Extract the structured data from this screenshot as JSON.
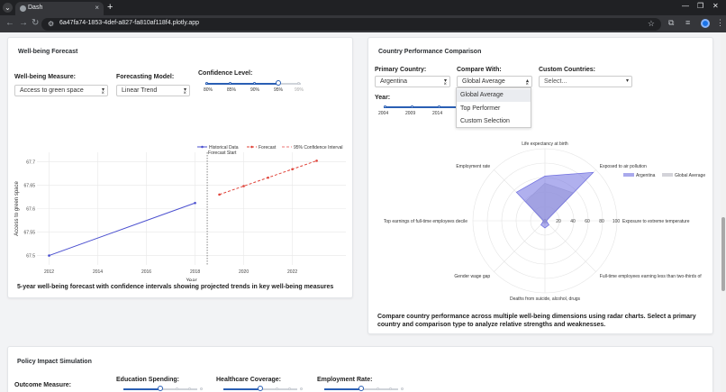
{
  "browser": {
    "tab_title": "Dash",
    "url": "6a47fa74-1853-4def-a827-fa810af118f4.plotly.app"
  },
  "forecast": {
    "title": "Well-being Forecast",
    "measure_label": "Well-being Measure:",
    "measure_value": "Access to green space",
    "model_label": "Forecasting Model:",
    "model_value": "Linear Trend",
    "confidence_label": "Confidence Level:",
    "confidence_marks": [
      "80%",
      "85%",
      "90%",
      "95%",
      "99%"
    ],
    "confidence_selected": "95%",
    "caption": "5-year well-being forecast with confidence intervals showing projected trends in key well-being measures",
    "chart_data": {
      "type": "line",
      "xlabel": "Year",
      "ylabel": "Access to green space",
      "xlim": [
        2011.5,
        2024.2
      ],
      "ylim": [
        67.48,
        67.72
      ],
      "xticks": [
        "2012",
        "2014",
        "2016",
        "2018",
        "2020",
        "2022"
      ],
      "yticks": [
        "67.5",
        "67.55",
        "67.6",
        "67.65",
        "67.7"
      ],
      "legend": [
        "Historical Data",
        "Forecast",
        "95% Confidence Interval"
      ],
      "legend_position": "top-right",
      "annotation": "Forecast Start",
      "forecast_start_x": 2018.5,
      "series": [
        {
          "name": "Historical Data",
          "color": "#4a4fcf",
          "style": "solid",
          "x": [
            2012,
            2018
          ],
          "y": [
            67.5,
            67.612
          ]
        },
        {
          "name": "Forecast",
          "color": "#e0443a",
          "style": "dash",
          "x": [
            2019,
            2020,
            2021,
            2022,
            2023
          ],
          "y": [
            67.63,
            67.648,
            67.666,
            67.684,
            67.702
          ]
        }
      ]
    }
  },
  "comparison": {
    "title": "Country Performance Comparison",
    "primary_label": "Primary Country:",
    "primary_value": "Argentina",
    "compare_label": "Compare With:",
    "compare_value": "Global Average",
    "custom_label": "Custom Countries:",
    "custom_placeholder": "Select...",
    "compare_options": [
      "Global Average",
      "Top Performer",
      "Custom Selection"
    ],
    "year_label": "Year:",
    "year_marks": [
      "2004",
      "2009",
      "2014"
    ],
    "caption": "Compare country performance across multiple well-being dimensions using radar charts. Select a primary country and comparison type to analyze relative strengths and weaknesses.",
    "chart_data": {
      "type": "radar",
      "axes": [
        "Life expectancy at birth",
        "Exposed to air pollution",
        "Exposure to extreme temperature",
        "Full-time employees earning less than two-thirds of",
        "Deaths from suicide, alcohol, drugs",
        "Gender wage gap",
        "Top earnings of full-time employees decile",
        "Employment rate"
      ],
      "radial_ticks": [
        "0",
        "20",
        "40",
        "60",
        "80",
        "100"
      ],
      "legend": [
        "Argentina",
        "Global Average"
      ],
      "legend_position": "top-right",
      "series": [
        {
          "name": "Argentina",
          "color": "#6f6fe0",
          "values": [
            62,
            95,
            2,
            8,
            10,
            8,
            2,
            56
          ]
        },
        {
          "name": "Global Average",
          "color": "#c8c8d0",
          "values": [
            52,
            55,
            2,
            4,
            4,
            4,
            3,
            38
          ]
        }
      ]
    }
  },
  "policy": {
    "title": "Policy Impact Simulation",
    "outcome_label": "Outcome Measure:",
    "edu_label": "Education Spending:",
    "health_label": "Healthcare Coverage:",
    "employment_label": "Employment Rate:"
  }
}
